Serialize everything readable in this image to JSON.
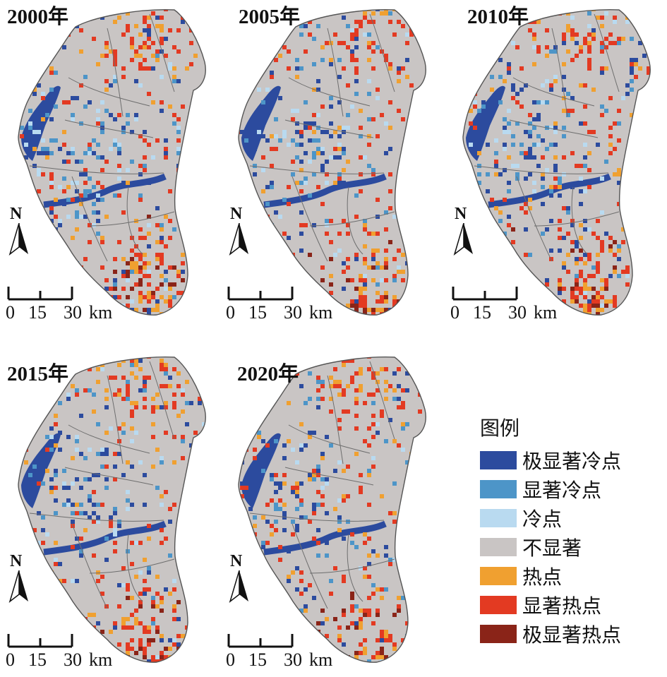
{
  "panels": [
    {
      "year": "2000年",
      "hot_level": 0.55,
      "cold_level": 0.55
    },
    {
      "year": "2005年",
      "hot_level": 0.55,
      "cold_level": 0.5
    },
    {
      "year": "2010年",
      "hot_level": 0.6,
      "cold_level": 0.45
    },
    {
      "year": "2015年",
      "hot_level": 0.5,
      "cold_level": 0.35
    },
    {
      "year": "2020年",
      "hot_level": 0.45,
      "cold_level": 0.35
    }
  ],
  "north_label": "N",
  "scale_bar": {
    "ticks": [
      "0",
      "15",
      "30"
    ],
    "unit": "km"
  },
  "legend": {
    "title": "图例",
    "items": [
      {
        "label": "极显著冷点",
        "color": "#2c4b9e"
      },
      {
        "label": "显著冷点",
        "color": "#4d95c8"
      },
      {
        "label": "冷点",
        "color": "#b9daf0"
      },
      {
        "label": "不显著",
        "color": "#c9c5c4"
      },
      {
        "label": "热点",
        "color": "#f0a030"
      },
      {
        "label": "显著热点",
        "color": "#e33a22"
      },
      {
        "label": "极显著热点",
        "color": "#8a2418"
      }
    ]
  }
}
